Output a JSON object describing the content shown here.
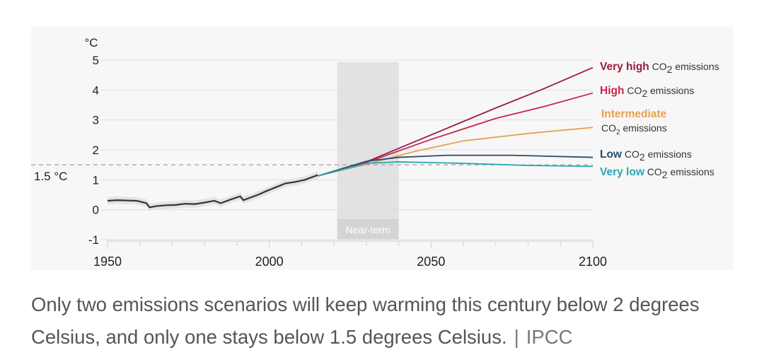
{
  "chart_data": {
    "type": "line",
    "unit_label": "°C",
    "xlim": [
      1950,
      2100
    ],
    "ylim": [
      -1,
      5
    ],
    "y_ticks": [
      5,
      4,
      3,
      2,
      1,
      0,
      -1
    ],
    "x_ticks": [
      1950,
      2000,
      2050,
      2100
    ],
    "threshold": {
      "value": 1.5,
      "label": "1.5 °C"
    },
    "near_term": {
      "start": 2021,
      "end": 2040,
      "label": "Near-term"
    },
    "historical": {
      "color": "#333333",
      "points": [
        [
          1950,
          0.3
        ],
        [
          1953,
          0.32
        ],
        [
          1956,
          0.31
        ],
        [
          1959,
          0.3
        ],
        [
          1962,
          0.22
        ],
        [
          1963,
          0.08
        ],
        [
          1965,
          0.12
        ],
        [
          1968,
          0.15
        ],
        [
          1971,
          0.16
        ],
        [
          1974,
          0.2
        ],
        [
          1977,
          0.19
        ],
        [
          1980,
          0.24
        ],
        [
          1983,
          0.3
        ],
        [
          1985,
          0.22
        ],
        [
          1988,
          0.34
        ],
        [
          1991,
          0.45
        ],
        [
          1992,
          0.32
        ],
        [
          1994,
          0.4
        ],
        [
          1997,
          0.52
        ],
        [
          1999,
          0.62
        ],
        [
          2002,
          0.75
        ],
        [
          2005,
          0.88
        ],
        [
          2008,
          0.93
        ],
        [
          2011,
          1.0
        ],
        [
          2014,
          1.12
        ],
        [
          2015,
          1.16
        ]
      ]
    },
    "series": [
      {
        "name": "Very high",
        "sub": "emissions",
        "color": "#9b1c3c",
        "sub_color": "#333333",
        "points": [
          [
            2015,
            1.13
          ],
          [
            2030,
            1.6
          ],
          [
            2050,
            2.5
          ],
          [
            2070,
            3.4
          ],
          [
            2085,
            4.05
          ],
          [
            2100,
            4.75
          ]
        ]
      },
      {
        "name": "High",
        "sub": "emissions",
        "color": "#c8254d",
        "sub_color": "#333333",
        "points": [
          [
            2015,
            1.13
          ],
          [
            2030,
            1.58
          ],
          [
            2050,
            2.35
          ],
          [
            2070,
            3.05
          ],
          [
            2085,
            3.45
          ],
          [
            2100,
            3.9
          ]
        ]
      },
      {
        "name": "Intermediate",
        "sub": "emissions",
        "color": "#e7a04f",
        "sub_color": "#333333",
        "points": [
          [
            2015,
            1.13
          ],
          [
            2030,
            1.52
          ],
          [
            2045,
            1.95
          ],
          [
            2060,
            2.3
          ],
          [
            2080,
            2.55
          ],
          [
            2100,
            2.75
          ]
        ]
      },
      {
        "name": "Low",
        "sub": "emissions",
        "color": "#2c4a6e",
        "sub_color": "#333333",
        "points": [
          [
            2015,
            1.13
          ],
          [
            2030,
            1.62
          ],
          [
            2040,
            1.75
          ],
          [
            2055,
            1.82
          ],
          [
            2075,
            1.82
          ],
          [
            2100,
            1.75
          ]
        ]
      },
      {
        "name": "Very low",
        "sub": "emissions",
        "color": "#29a6b6",
        "sub_color": "#333333",
        "points": [
          [
            2015,
            1.13
          ],
          [
            2030,
            1.55
          ],
          [
            2040,
            1.6
          ],
          [
            2060,
            1.55
          ],
          [
            2080,
            1.48
          ],
          [
            2100,
            1.45
          ]
        ]
      }
    ]
  },
  "caption": {
    "text": "Only two emissions scenarios will keep warming this century below 2 degrees Celsius, and only one stays below 1.5 degrees Celsius.",
    "separator": "|",
    "source": "IPCC"
  }
}
